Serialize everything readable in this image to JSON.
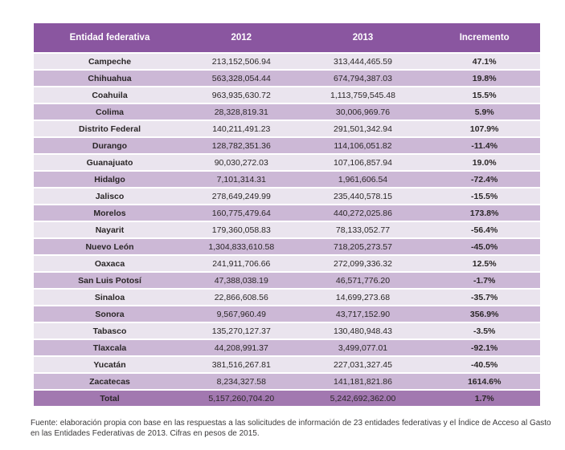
{
  "chart_data": {
    "type": "table",
    "columns": [
      "Entidad federativa",
      "2012",
      "2013",
      "Incremento"
    ],
    "rows": [
      [
        "Campeche",
        "213,152,506.94",
        "313,444,465.59",
        "47.1%"
      ],
      [
        "Chihuahua",
        "563,328,054.44",
        "674,794,387.03",
        "19.8%"
      ],
      [
        "Coahuila",
        "963,935,630.72",
        "1,113,759,545.48",
        "15.5%"
      ],
      [
        "Colima",
        "28,328,819.31",
        "30,006,969.76",
        "5.9%"
      ],
      [
        "Distrito Federal",
        "140,211,491.23",
        "291,501,342.94",
        "107.9%"
      ],
      [
        "Durango",
        "128,782,351.36",
        "114,106,051.82",
        "-11.4%"
      ],
      [
        "Guanajuato",
        "90,030,272.03",
        "107,106,857.94",
        "19.0%"
      ],
      [
        "Hidalgo",
        "7,101,314.31",
        "1,961,606.54",
        "-72.4%"
      ],
      [
        "Jalisco",
        "278,649,249.99",
        "235,440,578.15",
        "-15.5%"
      ],
      [
        "Morelos",
        "160,775,479.64",
        "440,272,025.86",
        "173.8%"
      ],
      [
        "Nayarit",
        "179,360,058.83",
        "78,133,052.77",
        "-56.4%"
      ],
      [
        "Nuevo León",
        "1,304,833,610.58",
        "718,205,273.57",
        "-45.0%"
      ],
      [
        "Oaxaca",
        "241,911,706.66",
        "272,099,336.32",
        "12.5%"
      ],
      [
        "San Luis Potosí",
        "47,388,038.19",
        "46,571,776.20",
        "-1.7%"
      ],
      [
        "Sinaloa",
        "22,866,608.56",
        "14,699,273.68",
        "-35.7%"
      ],
      [
        "Sonora",
        "9,567,960.49",
        "43,717,152.90",
        "356.9%"
      ],
      [
        "Tabasco",
        "135,270,127.37",
        "130,480,948.43",
        "-3.5%"
      ],
      [
        "Tlaxcala",
        "44,208,991.37",
        "3,499,077.01",
        "-92.1%"
      ],
      [
        "Yucatán",
        "381,516,267.81",
        "227,031,327.45",
        "-40.5%"
      ],
      [
        "Zacatecas",
        "8,234,327.58",
        "141,181,821.86",
        "1614.6%"
      ]
    ],
    "total_row": [
      "Total",
      "5,157,260,704.20",
      "5,242,692,362.00",
      "1.7%"
    ],
    "source_note": "Fuente: elaboración propia con base en las respuestas a las solicitudes de información de 23 entidades federativas y el Índice de Acceso al Gasto en las Entidades Federativas de 2013. Cifras en pesos de 2015.",
    "colors": {
      "header_bg": "#8a56a0",
      "total_bg": "#a278b0",
      "row_light": "#eae4ee",
      "row_dark": "#ccb8d6",
      "header_text": "#ffffff",
      "body_text": "#2a2627"
    },
    "layout": {
      "striped": true,
      "row_gap_color": "#ffffff",
      "column_alignment": "center"
    }
  }
}
